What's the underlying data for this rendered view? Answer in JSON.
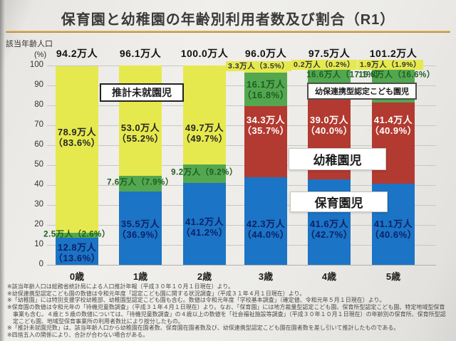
{
  "title": "保育園と幼稚園の年齢別利用者数及び割合（R1）",
  "y_axis_unit": "該当年齢人口",
  "y_axis_percent": "(%)",
  "legend": {
    "mishuen": "推計未就園児",
    "kodomoen": "幼保連携型認定こども園児",
    "youchien": "幼稚園児",
    "hoiku": "保育園児"
  },
  "colors": {
    "hoiku_blue": "#1b74c5",
    "youchien_red": "#b23a30",
    "kodomoen_green": "#53a74f",
    "mishuen_yellow": "#e6e94e",
    "title_underline": "#c9973f"
  },
  "chart_data": {
    "type": "bar",
    "stacked": true,
    "title": "保育園と幼稚園の年齢別利用者数及び割合（R1）",
    "ylabel": "該当年齢人口 (%)",
    "ylim": [
      0,
      100
    ],
    "grid": true,
    "y_ticks": [
      100,
      90,
      80,
      70,
      60,
      50,
      40,
      30,
      20,
      10,
      0
    ],
    "categories": [
      "0歳",
      "1歳",
      "2歳",
      "3歳",
      "4歳",
      "5歳"
    ],
    "population_by_age": [
      "94.2万人",
      "96.1万人",
      "100.0万人",
      "96.0万人",
      "97.5万人",
      "101.2万人"
    ],
    "series": [
      {
        "name": "保育園児",
        "color": "#1b74c5",
        "values": [
          13.6,
          36.9,
          41.2,
          44.0,
          42.7,
          40.6
        ]
      },
      {
        "name": "幼稚園児",
        "color": "#b23a30",
        "values": [
          0,
          0,
          0,
          35.7,
          40.0,
          40.9
        ]
      },
      {
        "name": "幼保連携型認定こども園児",
        "color": "#53a74f",
        "values": [
          2.6,
          7.9,
          9.2,
          16.8,
          17.1,
          16.6
        ]
      },
      {
        "name": "推計未就園児",
        "color": "#e6e94e",
        "values": [
          83.6,
          55.2,
          49.7,
          3.5,
          0.2,
          1.9
        ]
      }
    ],
    "bar_labels": [
      {
        "bar": 0,
        "text": "12.8万人\n（13.6%）",
        "y": 6,
        "cls": "blue"
      },
      {
        "bar": 0,
        "text": "2.5万人（2.6%）",
        "y": 15,
        "cls": "green"
      },
      {
        "bar": 0,
        "text": "78.9万人\n（83.6%）",
        "y": 64,
        "cls": "dark"
      },
      {
        "bar": 1,
        "text": "35.5万人\n（36.9%）",
        "y": 18,
        "cls": "blue"
      },
      {
        "bar": 1,
        "text": "7.6万人（7.9%）",
        "y": 41,
        "cls": "green"
      },
      {
        "bar": 1,
        "text": "53.0万人\n（55.2%）",
        "y": 66,
        "cls": "dark"
      },
      {
        "bar": 2,
        "text": "41.2万人\n（41.2%）",
        "y": 19,
        "cls": "blue"
      },
      {
        "bar": 2,
        "text": "9.2万人（9.2%）",
        "y": 46,
        "cls": "green"
      },
      {
        "bar": 2,
        "text": "49.7万人\n（49.7%）",
        "y": 66,
        "cls": "dark"
      },
      {
        "bar": 3,
        "text": "42.3万人\n（44.0%）",
        "y": 18,
        "cls": "blue"
      },
      {
        "bar": 3,
        "text": "34.3万人\n（35.7%）",
        "y": 70,
        "cls": "white"
      },
      {
        "bar": 3,
        "text": "16.1万人\n（16.8%）",
        "y": 88,
        "cls": "green two"
      },
      {
        "bar": 3,
        "text": "3.3万人（3.5%）",
        "y": 99.8,
        "cls": "chip",
        "dx": -10
      },
      {
        "bar": 4,
        "text": "41.6万人\n（42.7%）",
        "y": 18,
        "cls": "blue"
      },
      {
        "bar": 4,
        "text": "39.0万人\n（40.0%）",
        "y": 70,
        "cls": "white"
      },
      {
        "bar": 4,
        "text": "16.6万人（17.1%）",
        "y": 95,
        "cls": "green",
        "dx": 22
      },
      {
        "bar": 4,
        "text": "0.2万人（0.2%）",
        "y": 100.5,
        "cls": "chip",
        "dx": -7
      },
      {
        "bar": 5,
        "text": "41.1万人\n（40.6%）",
        "y": 18,
        "cls": "blue"
      },
      {
        "bar": 5,
        "text": "41.4万人\n（40.9%）",
        "y": 70,
        "cls": "white"
      },
      {
        "bar": 5,
        "text": "16.8万人（16.6%）",
        "y": 95,
        "cls": "green",
        "dx": 5
      },
      {
        "bar": 5,
        "text": "1.9万人（1.9%）",
        "y": 100.5,
        "cls": "chip",
        "dx": -4
      }
    ]
  },
  "footnotes": [
    "※該当年齢人口は総務省統計局による人口推計年報（平成３０年１０月１日現在）より。",
    "※幼保連携型認定こども園の数値は令和元年度「認定こども園に関する状況調査」（平成３１年４月１日現在）より。",
    "※「幼稚園」には特別支援学校幼稚部、幼稚園型認定こども園も含む。数値は令和元年度「学校基本調査」（確定値、令和元年５月１日現在）より。",
    "※保育園の数値は令和元年の「待機児童数調査」（平成３１年４月１日現在）より。なお、「保育園」には地方裁量型認定こども園、保育所型認定こども園、特定地域型保育事業も含む。４歳と５歳の数値については、「待機児童数調査」の４歳以上の数値を「社会福祉施設等調査」（平成３０年１０月１日現在）の年齢別の保育所、保育所型認定こども園、地域型保育事業所の利用者数比により按分したもの。",
    "※「推計未就園児数」は、該当年齢人口から幼稚園在園者数、保育園在園者数及び、幼保連携型認定こども園在園者数を差し引いて推計したものである。",
    "※四捨五入の関係により、合計が合わない場合がある。"
  ]
}
